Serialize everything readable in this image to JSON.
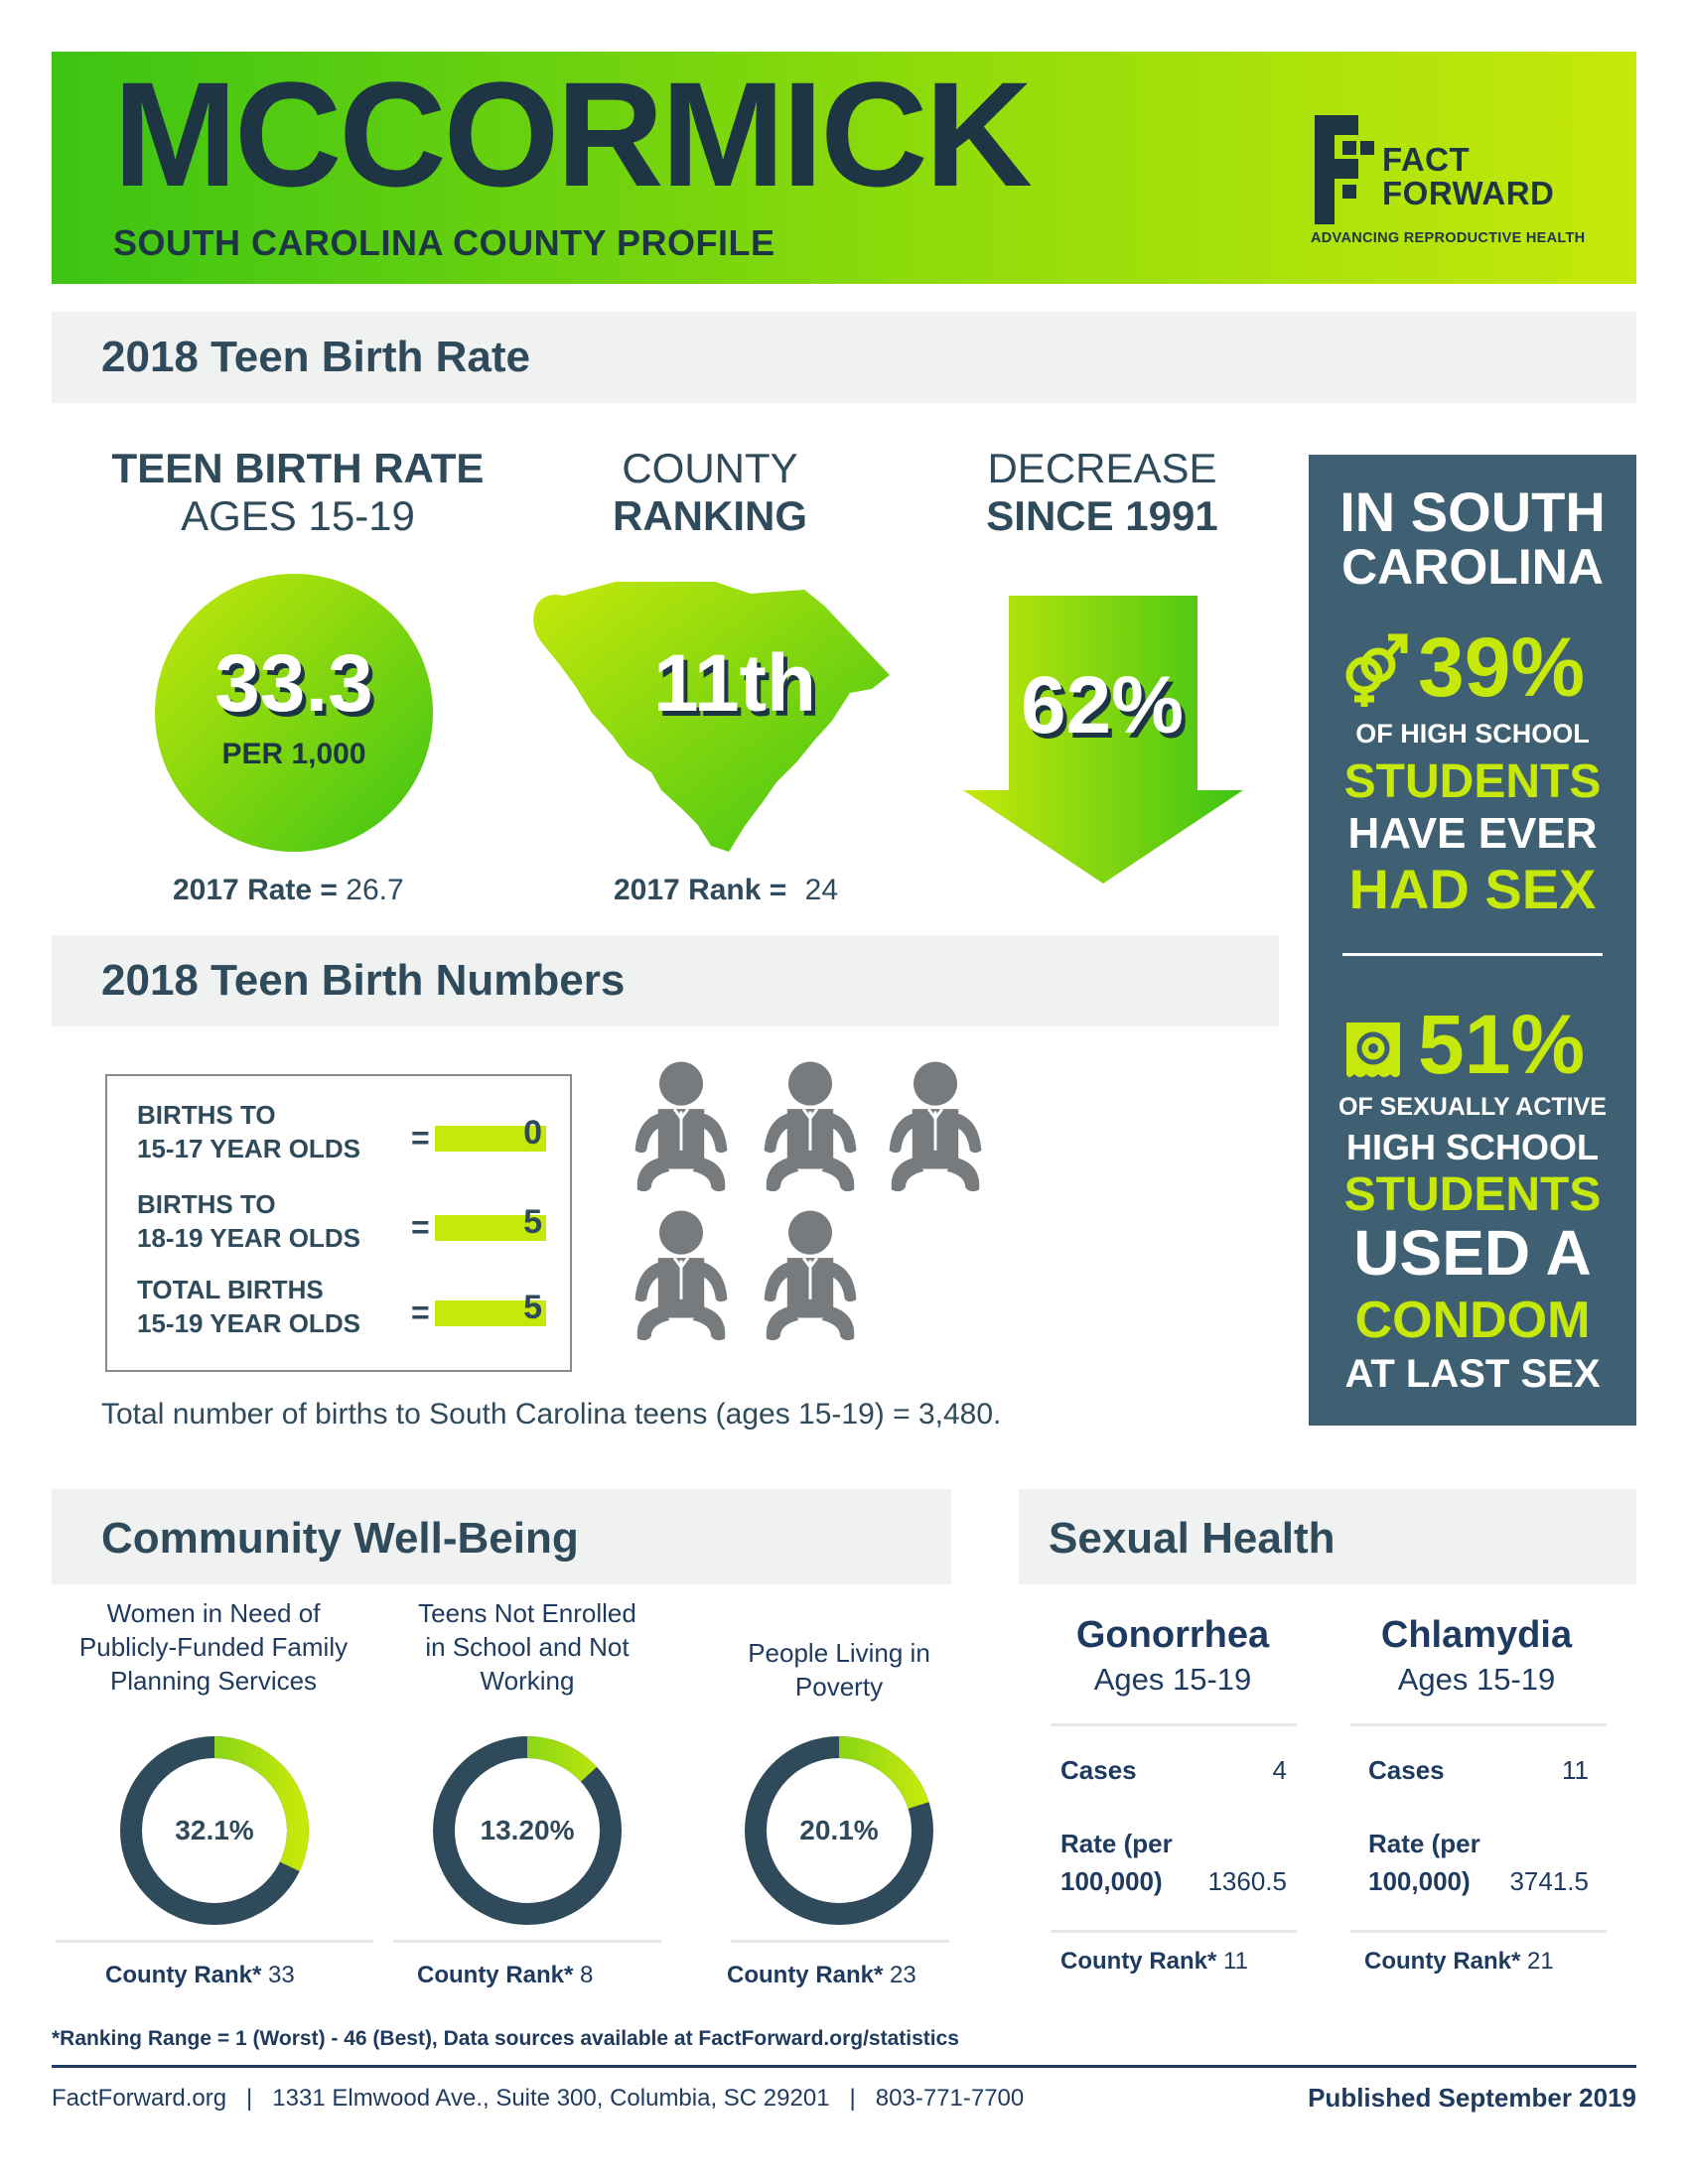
{
  "header": {
    "county": "MCCORMICK",
    "subtitle": "SOUTH CAROLINA COUNTY PROFILE",
    "logo_line1": "FACT",
    "logo_line2": "FORWARD",
    "logo_tagline": "ADVANCING REPRODUCTIVE HEALTH"
  },
  "teen_birth_rate": {
    "section_title": "2018 Teen Birth Rate",
    "rate_heading_1": "TEEN BIRTH RATE",
    "rate_heading_2": "AGES 15-19",
    "rate_value": "33.3",
    "rate_unit": "PER 1,000",
    "prev_rate_label": "2017 Rate =",
    "prev_rate_value": "26.7",
    "ranking_heading_1": "COUNTY",
    "ranking_heading_2": "RANKING",
    "ranking_value": "11th",
    "prev_rank_label": "2017 Rank =",
    "prev_rank_value": "24",
    "decrease_heading_1": "DECREASE",
    "decrease_heading_2": "SINCE 1991",
    "decrease_value": "62%"
  },
  "sidebar": {
    "title_1": "IN SOUTH",
    "title_2": "CAROLINA",
    "stat1_value": "39%",
    "stat1_line1": "OF HIGH SCHOOL",
    "stat1_line2": "STUDENTS",
    "stat1_line3": "HAVE EVER",
    "stat1_line4": "HAD SEX",
    "stat2_value": "51%",
    "stat2_line1": "OF SEXUALLY ACTIVE",
    "stat2_line2": "HIGH SCHOOL",
    "stat2_line3": "STUDENTS",
    "stat2_line4": "USED A",
    "stat2_line5": "CONDOM",
    "stat2_line6": "AT LAST SEX"
  },
  "teen_birth_numbers": {
    "section_title": "2018 Teen Birth Numbers",
    "rows": [
      {
        "label1": "BIRTHS TO",
        "label2": "15-17 YEAR OLDS",
        "value": "0"
      },
      {
        "label1": "BIRTHS TO",
        "label2": "18-19 YEAR OLDS",
        "value": "5"
      },
      {
        "label1": "TOTAL BIRTHS",
        "label2": "15-19 YEAR OLDS",
        "value": "5"
      }
    ],
    "equals": "=",
    "state_total_note": "Total number of births to South Carolina teens (ages 15-19) = 3,480."
  },
  "community": {
    "section_title": "Community Well-Being",
    "items": [
      {
        "title1": "Women in Need of",
        "title2": "Publicly-Funded Family",
        "title3": "Planning Services",
        "label": "32.1%",
        "percent": 32.1,
        "rank_label": "County Rank*",
        "rank": "33"
      },
      {
        "title1": "Teens Not Enrolled",
        "title2": "in School and Not",
        "title3": "Working",
        "label": "13.20%",
        "percent": 13.2,
        "rank_label": "County Rank*",
        "rank": "8"
      },
      {
        "title1": "People Living in",
        "title2": "Poverty",
        "title3": "",
        "label": "20.1%",
        "percent": 20.1,
        "rank_label": "County Rank*",
        "rank": "23"
      }
    ]
  },
  "sexual_health": {
    "section_title": "Sexual Health",
    "diseases": [
      {
        "name": "Gonorrhea",
        "ages": "Ages 15-19",
        "cases_label": "Cases",
        "cases": "4",
        "rate_label1": "Rate (per",
        "rate_label2": "100,000)",
        "rate": "1360.5",
        "rank_label": "County Rank*",
        "rank": "11"
      },
      {
        "name": "Chlamydia",
        "ages": "Ages 15-19",
        "cases_label": "Cases",
        "cases": "11",
        "rate_label1": "Rate (per",
        "rate_label2": "100,000)",
        "rate": "3741.5",
        "rank_label": "County Rank*",
        "rank": "21"
      }
    ]
  },
  "footnote": "*Ranking Range = 1 (Worst) - 46 (Best), Data sources available at FactForward.org/statistics",
  "footer": {
    "contact": "FactForward.org   |   1331 Elmwood Ave., Suite 300, Columbia, SC 29201   |   803-771-7700",
    "published": "Published September 2019"
  },
  "colors": {
    "navy": "#1e3644",
    "slate": "#3e6072",
    "lime": "#c6e80a",
    "green": "#3cc414",
    "donut_track": "#2f4a5a"
  },
  "icons": [
    "gender-symbols-icon",
    "condom-icon",
    "baby-icon",
    "down-arrow-icon",
    "south-carolina-map-icon"
  ]
}
